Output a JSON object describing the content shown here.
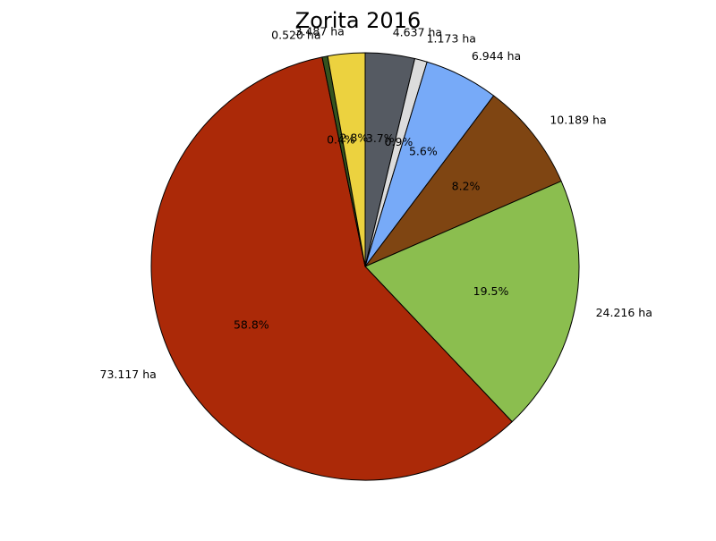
{
  "chart_data": {
    "type": "pie",
    "title": "Zorita 2016",
    "unit": "ha",
    "start_angle_deg": 90,
    "direction": "clockwise",
    "slices": [
      {
        "value": 4.637,
        "label": "4.637 ha",
        "pct_label": "3.7%",
        "color": "#555a62"
      },
      {
        "value": 1.173,
        "label": "1.173 ha",
        "pct_label": "0.9%",
        "color": "#dcdcdc"
      },
      {
        "value": 6.944,
        "label": "6.944 ha",
        "pct_label": "5.6%",
        "color": "#77aaf8"
      },
      {
        "value": 10.189,
        "label": "10.189 ha",
        "pct_label": "8.2%",
        "color": "#7f4512"
      },
      {
        "value": 24.216,
        "label": "24.216 ha",
        "pct_label": "19.5%",
        "color": "#8bbe4f"
      },
      {
        "value": 73.117,
        "label": "73.117 ha",
        "pct_label": "58.8%",
        "color": "#ab2908"
      },
      {
        "value": 0.52,
        "label": "0.520 ha",
        "pct_label": "0.4%",
        "color": "#35531f"
      },
      {
        "value": 3.487,
        "label": "3.487 ha",
        "pct_label": "2.8%",
        "color": "#ecd23f"
      }
    ]
  }
}
